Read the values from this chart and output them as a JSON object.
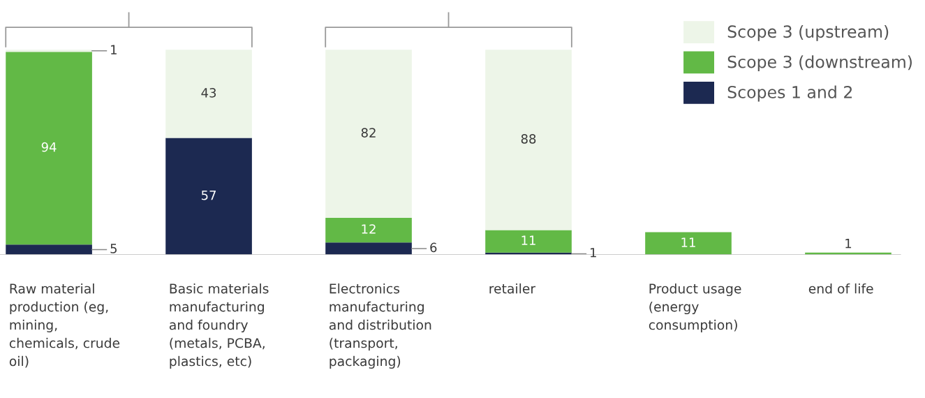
{
  "chart_data": {
    "type": "bar",
    "stacked": true,
    "categories": [
      "Raw material\nproduction (eg,\nmining,\nchemicals, crude\noil)",
      "Basic materials\nmanufacturing\nand foundry\n(metals, PCBA,\nplastics, etc)",
      "Electronics\nmanufacturing\nand distribution\n(transport,\npackaging)",
      "retailer",
      "Product usage\n(energy\nconsumption)",
      "end of life"
    ],
    "series": [
      {
        "name": "Scopes 1 and 2",
        "color": "#1c2951",
        "values": [
          5,
          57,
          6,
          1,
          null,
          null
        ]
      },
      {
        "name": "Scope 3 (downstream)",
        "color": "#62b946",
        "values": [
          94,
          null,
          12,
          11,
          11,
          1
        ]
      },
      {
        "name": "Scope 3 (upstream)",
        "color": "#edf5e8",
        "values": [
          1,
          43,
          82,
          88,
          null,
          null
        ]
      }
    ],
    "data_labels": true,
    "legend": "top right"
  }
}
